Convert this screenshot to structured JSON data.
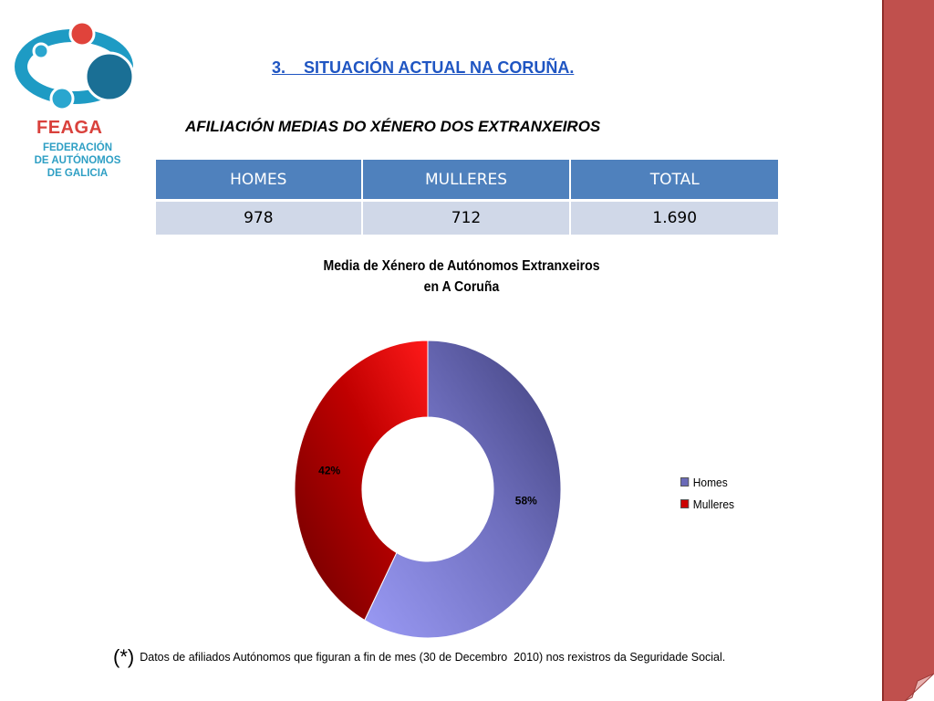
{
  "slide": {
    "section_title": "3.    SITUACIÓN ACTUAL NA CORUÑA.",
    "subtitle": "AFILIACIÓN MEDIAS DO XÉNERO DOS EXTRANXEIROS"
  },
  "logo": {
    "acronym": "FEAGA",
    "line1": "FEDERACIÓN",
    "line2": "DE AUTÓNOMOS",
    "line3": "DE GALICIA",
    "colors": {
      "teal": "#1e9bc4",
      "dark_teal": "#1a6f95",
      "red": "#e0433b"
    }
  },
  "table": {
    "headers": [
      "HOMES",
      "MULLERES",
      "TOTAL"
    ],
    "rows": [
      [
        "978",
        "712",
        "1.690"
      ]
    ],
    "colors": {
      "header_bg": "#4f81bd",
      "row_bg": "#d0d8e8"
    }
  },
  "chart_data": {
    "type": "pie",
    "subtype": "doughnut",
    "title": "Media de Xénero de Autónomos Extranxeiros",
    "title_line2": "en A Coruña",
    "categories": [
      "Homes",
      "Mulleres"
    ],
    "values": [
      978,
      712
    ],
    "data_labels": [
      "58%",
      "42%"
    ],
    "colors": [
      "#6a6ab8",
      "#cc0000"
    ],
    "legend_position": "right"
  },
  "footnote": {
    "mark": "(*)",
    "text": "Datos de afiliados Autónomos que figuran a fin de mes (30 de Decembro  2010) nos rexistros da Seguridade Social."
  },
  "theme": {
    "side_bar_color": "#c0504d"
  }
}
